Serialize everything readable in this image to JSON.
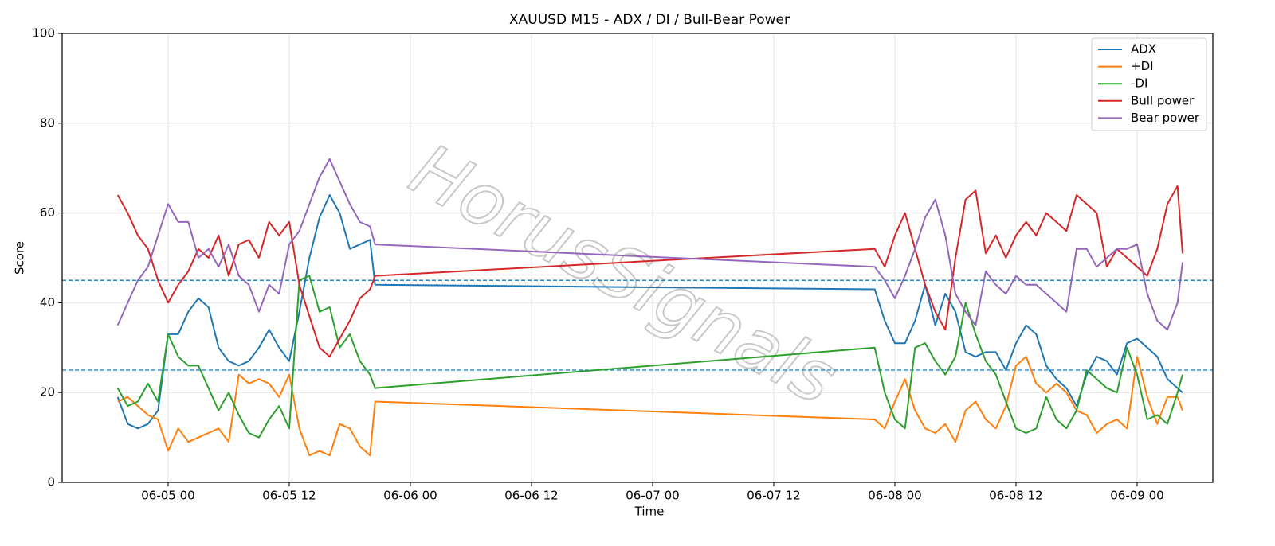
{
  "chart_data": {
    "type": "line",
    "title": "XAUUSD M15 - ADX / DI / Bull-Bear Power",
    "x_label": "Time",
    "y_label": "Score",
    "watermark": "HorusSignals",
    "x": [
      "06-04 19:00",
      "06-04 20:00",
      "06-04 21:00",
      "06-04 22:00",
      "06-04 23:00",
      "06-05 00:00",
      "06-05 01:00",
      "06-05 02:00",
      "06-05 03:00",
      "06-05 04:00",
      "06-05 05:00",
      "06-05 06:00",
      "06-05 07:00",
      "06-05 08:00",
      "06-05 09:00",
      "06-05 10:00",
      "06-05 11:00",
      "06-05 12:00",
      "06-05 13:00",
      "06-05 14:00",
      "06-05 15:00",
      "06-05 16:00",
      "06-05 17:00",
      "06-05 18:00",
      "06-05 19:00",
      "06-05 20:00",
      "06-05 20:30",
      "06-07 22:00",
      "06-07 23:00",
      "06-08 00:00",
      "06-08 01:00",
      "06-08 02:00",
      "06-08 03:00",
      "06-08 04:00",
      "06-08 05:00",
      "06-08 06:00",
      "06-08 07:00",
      "06-08 08:00",
      "06-08 09:00",
      "06-08 10:00",
      "06-08 11:00",
      "06-08 12:00",
      "06-08 13:00",
      "06-08 14:00",
      "06-08 15:00",
      "06-08 16:00",
      "06-08 17:00",
      "06-08 18:00",
      "06-08 19:00",
      "06-08 20:00",
      "06-08 21:00",
      "06-08 22:00",
      "06-08 23:00",
      "06-09 00:00",
      "06-09 01:00",
      "06-09 02:00",
      "06-09 03:00",
      "06-09 04:00",
      "06-09 04:30"
    ],
    "series": [
      {
        "name": "ADX",
        "color": "#1f77b4",
        "values": [
          19,
          13,
          12,
          13,
          16,
          33,
          33,
          38,
          41,
          39,
          30,
          27,
          26,
          27,
          30,
          34,
          30,
          27,
          38,
          50,
          59,
          64,
          60,
          52,
          53,
          54,
          44,
          43,
          36,
          31,
          31,
          36,
          44,
          35,
          42,
          38,
          29,
          28,
          29,
          29,
          25,
          31,
          35,
          33,
          26,
          23,
          21,
          17,
          24,
          28,
          27,
          24,
          31,
          32,
          30,
          28,
          23,
          21,
          20
        ]
      },
      {
        "name": "+DI",
        "color": "#ff7f0e",
        "values": [
          18,
          19,
          17,
          15,
          14,
          7,
          12,
          9,
          10,
          11,
          12,
          9,
          24,
          22,
          23,
          22,
          19,
          24,
          12,
          6,
          7,
          6,
          13,
          12,
          8,
          6,
          18,
          14,
          12,
          18,
          23,
          16,
          12,
          11,
          13,
          9,
          16,
          18,
          14,
          12,
          17,
          26,
          28,
          22,
          20,
          22,
          20,
          16,
          15,
          11,
          13,
          14,
          12,
          28,
          19,
          13,
          19,
          19,
          16
        ]
      },
      {
        "name": "-DI",
        "color": "#2ca02c",
        "values": [
          21,
          17,
          18,
          22,
          18,
          33,
          28,
          26,
          26,
          21,
          16,
          20,
          15,
          11,
          10,
          14,
          17,
          12,
          45,
          46,
          38,
          39,
          30,
          33,
          27,
          24,
          21,
          30,
          20,
          14,
          12,
          30,
          31,
          27,
          24,
          28,
          40,
          33,
          27,
          24,
          18,
          12,
          11,
          12,
          19,
          14,
          12,
          16,
          25,
          23,
          21,
          20,
          30,
          24,
          14,
          15,
          13,
          20,
          24
        ]
      },
      {
        "name": "Bull power",
        "color": "#d62728",
        "values": [
          64,
          60,
          55,
          52,
          45,
          40,
          44,
          47,
          52,
          50,
          55,
          46,
          53,
          54,
          50,
          58,
          55,
          58,
          44,
          37,
          30,
          28,
          32,
          36,
          41,
          43,
          46,
          52,
          48,
          55,
          60,
          52,
          44,
          38,
          34,
          50,
          63,
          65,
          51,
          55,
          50,
          55,
          58,
          55,
          60,
          58,
          56,
          64,
          62,
          60,
          48,
          52,
          50,
          48,
          46,
          52,
          62,
          66,
          51
        ]
      },
      {
        "name": "Bear power",
        "color": "#9467bd",
        "values": [
          35,
          40,
          45,
          48,
          55,
          62,
          58,
          58,
          50,
          52,
          48,
          53,
          46,
          44,
          38,
          44,
          42,
          53,
          56,
          62,
          68,
          72,
          67,
          62,
          58,
          57,
          53,
          48,
          45,
          41,
          46,
          52,
          59,
          63,
          55,
          42,
          38,
          35,
          47,
          44,
          42,
          46,
          44,
          44,
          42,
          40,
          38,
          52,
          52,
          48,
          50,
          52,
          52,
          53,
          42,
          36,
          34,
          40,
          49
        ]
      }
    ],
    "hlines": [
      45,
      25
    ],
    "hline_color": "#1f77b4",
    "xlim": [
      "06-04 13:30",
      "06-09 07:30"
    ],
    "xticks": [
      "06-05 00",
      "06-05 12",
      "06-06 00",
      "06-06 12",
      "06-07 00",
      "06-07 12",
      "06-08 00",
      "06-08 12",
      "06-09 00"
    ],
    "ylim": [
      0,
      100
    ],
    "yticks": [
      0,
      20,
      40,
      60,
      80,
      100
    ],
    "grid": true,
    "legend": "upper right"
  }
}
